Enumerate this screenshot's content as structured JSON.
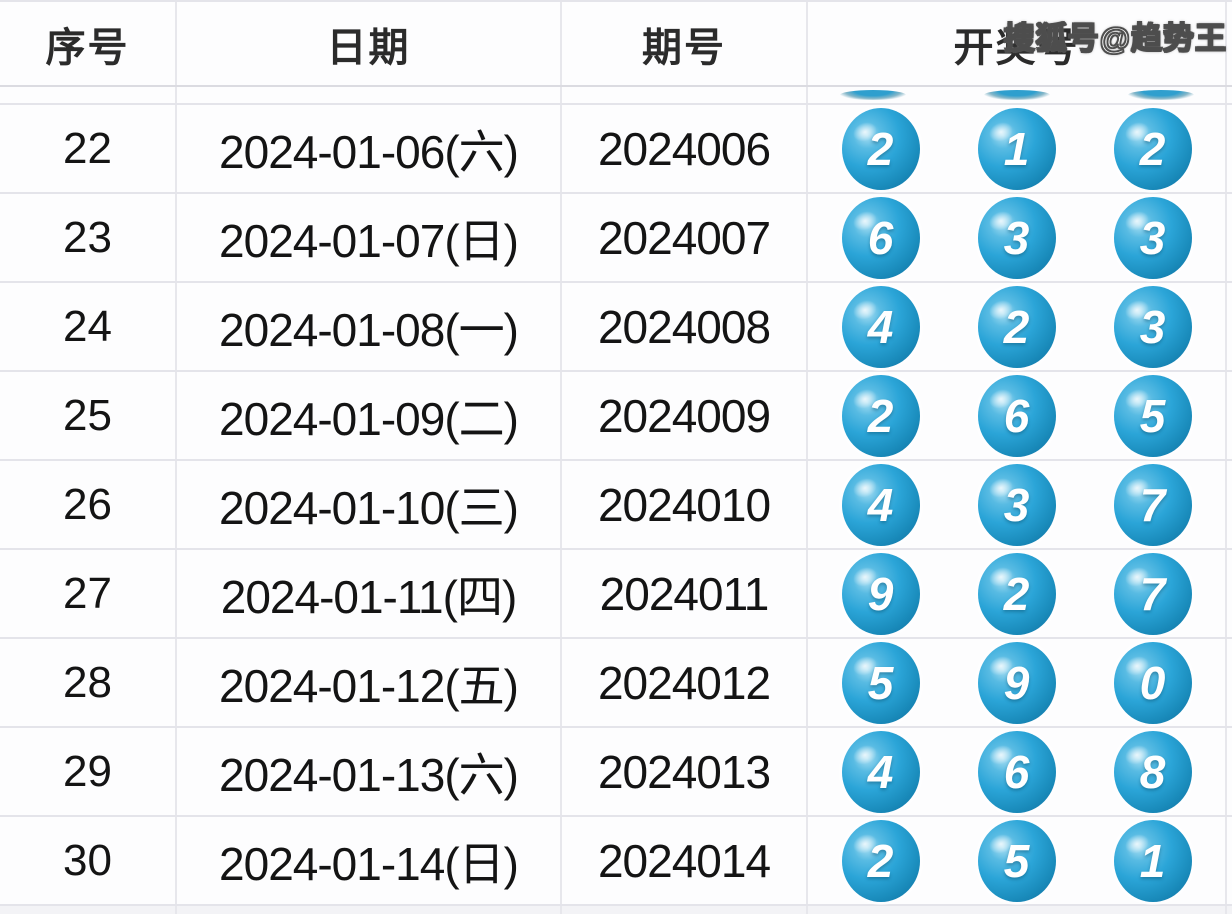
{
  "watermark": "搜狐号@趋势王",
  "colors": {
    "ball_main": "#2aa5d7",
    "ball_dark_rim": "#1580b0",
    "ball_highlight": "#aadff3",
    "grid_border": "#e7e7ec",
    "text": "#141414",
    "header_text": "#2b2b2b"
  },
  "table": {
    "headers": {
      "seq": "序号",
      "date": "日期",
      "period": "期号",
      "draw": "开奖号"
    },
    "rows": [
      {
        "seq": "22",
        "date": "2024-01-06(六)",
        "period": "2024006",
        "balls": [
          "2",
          "1",
          "2"
        ]
      },
      {
        "seq": "23",
        "date": "2024-01-07(日)",
        "period": "2024007",
        "balls": [
          "6",
          "3",
          "3"
        ]
      },
      {
        "seq": "24",
        "date": "2024-01-08(一)",
        "period": "2024008",
        "balls": [
          "4",
          "2",
          "3"
        ]
      },
      {
        "seq": "25",
        "date": "2024-01-09(二)",
        "period": "2024009",
        "balls": [
          "2",
          "6",
          "5"
        ]
      },
      {
        "seq": "26",
        "date": "2024-01-10(三)",
        "period": "2024010",
        "balls": [
          "4",
          "3",
          "7"
        ]
      },
      {
        "seq": "27",
        "date": "2024-01-11(四)",
        "period": "2024011",
        "balls": [
          "9",
          "2",
          "7"
        ]
      },
      {
        "seq": "28",
        "date": "2024-01-12(五)",
        "period": "2024012",
        "balls": [
          "5",
          "9",
          "0"
        ]
      },
      {
        "seq": "29",
        "date": "2024-01-13(六)",
        "period": "2024013",
        "balls": [
          "4",
          "6",
          "8"
        ]
      },
      {
        "seq": "30",
        "date": "2024-01-14(日)",
        "period": "2024014",
        "balls": [
          "2",
          "5",
          "1"
        ]
      }
    ]
  }
}
